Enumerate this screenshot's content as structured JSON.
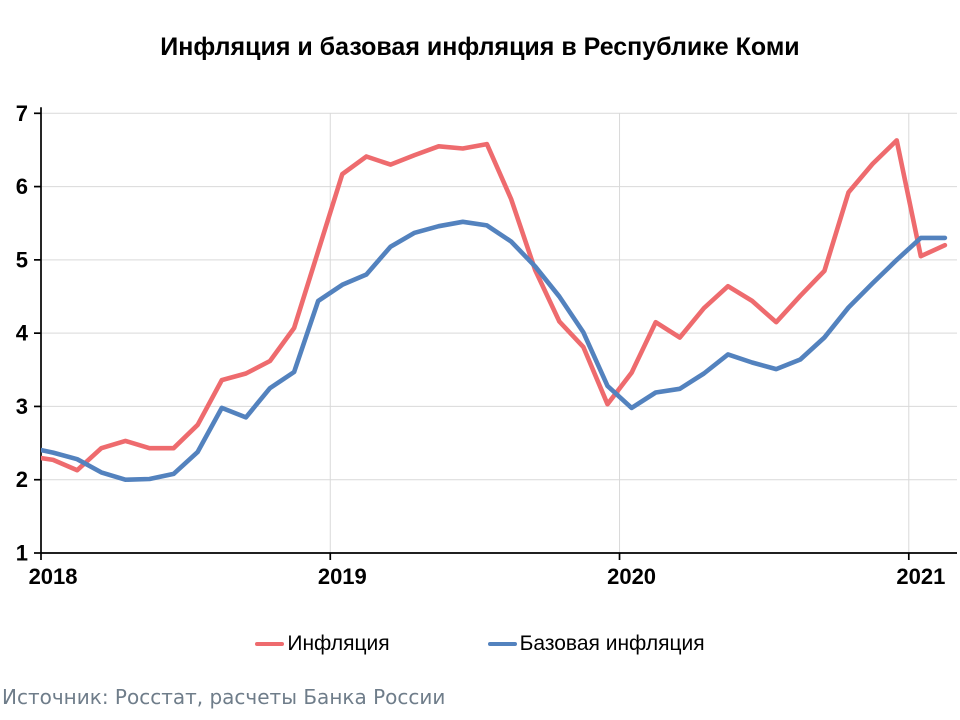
{
  "page": {
    "title": "Инфляция и базовая инфляция в Республике Коми",
    "source": "Источник: Росстат, расчеты Банка России"
  },
  "chart_data": {
    "type": "line",
    "title": "Инфляция и базовая инфляция в Республике Коми",
    "x_unit": "month",
    "months": [
      "2017-12",
      "2018-01",
      "2018-02",
      "2018-03",
      "2018-04",
      "2018-05",
      "2018-06",
      "2018-07",
      "2018-08",
      "2018-09",
      "2018-10",
      "2018-11",
      "2018-12",
      "2019-01",
      "2019-02",
      "2019-03",
      "2019-04",
      "2019-05",
      "2019-06",
      "2019-07",
      "2019-08",
      "2019-09",
      "2019-10",
      "2019-11",
      "2019-12",
      "2020-01",
      "2020-02",
      "2020-03",
      "2020-04",
      "2020-05",
      "2020-06",
      "2020-07",
      "2020-08",
      "2020-09",
      "2020-10",
      "2020-11",
      "2020-12",
      "2021-01",
      "2021-02"
    ],
    "series": [
      {
        "name": "Инфляция",
        "key": "inflation",
        "color": "#EE6B6E",
        "values": [
          2.32,
          2.27,
          2.13,
          2.43,
          2.53,
          2.43,
          2.43,
          2.75,
          3.36,
          3.45,
          3.62,
          4.07,
          5.12,
          6.17,
          6.41,
          6.3,
          6.43,
          6.55,
          6.52,
          6.58,
          5.83,
          4.86,
          4.16,
          3.81,
          3.03,
          3.46,
          4.15,
          3.94,
          4.34,
          4.64,
          4.44,
          4.15,
          4.51,
          4.85,
          5.92,
          6.31,
          6.63,
          5.05,
          5.2
        ]
      },
      {
        "name": "Базовая инфляция",
        "key": "core-inflation",
        "color": "#5382BE",
        "values": [
          2.44,
          2.37,
          2.28,
          2.1,
          2.0,
          2.01,
          2.08,
          2.38,
          2.98,
          2.85,
          3.25,
          3.47,
          4.44,
          4.66,
          4.8,
          5.18,
          5.37,
          5.46,
          5.52,
          5.47,
          5.25,
          4.91,
          4.5,
          4.01,
          3.28,
          2.98,
          3.19,
          3.24,
          3.45,
          3.71,
          3.6,
          3.51,
          3.64,
          3.94,
          4.35,
          4.68,
          5.0,
          5.3,
          5.3
        ]
      }
    ],
    "ylim": [
      1,
      7
    ],
    "yticks": [
      1,
      2,
      3,
      4,
      5,
      6,
      7
    ],
    "xtick_labels": [
      "2018",
      "2019",
      "2020",
      "2021"
    ],
    "xtick_month_index": [
      1,
      13,
      25,
      37
    ],
    "grid": true,
    "gridline_color": "#D9D9D9",
    "axis_color": "#000000",
    "legend_position": "bottom"
  }
}
